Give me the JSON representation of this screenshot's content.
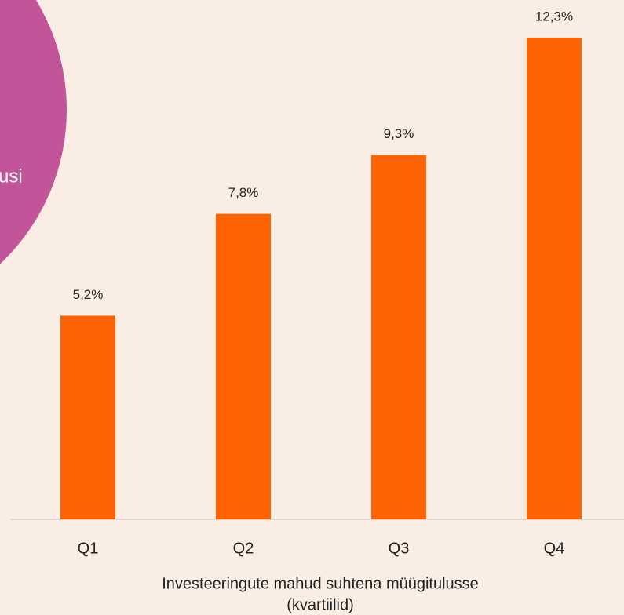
{
  "chart_data": {
    "type": "bar",
    "annotation": "usi",
    "categories": [
      "Q1",
      "Q2",
      "Q3",
      "Q4"
    ],
    "values": [
      5.2,
      7.8,
      9.3,
      12.3
    ],
    "value_labels": [
      "5,2%",
      "7,8%",
      "9,3%",
      "12,3%"
    ],
    "color": "#ff6200",
    "x_label": [
      "Investeeringute mahud suhtena müügitulusse",
      "(kvartiilid)"
    ]
  }
}
